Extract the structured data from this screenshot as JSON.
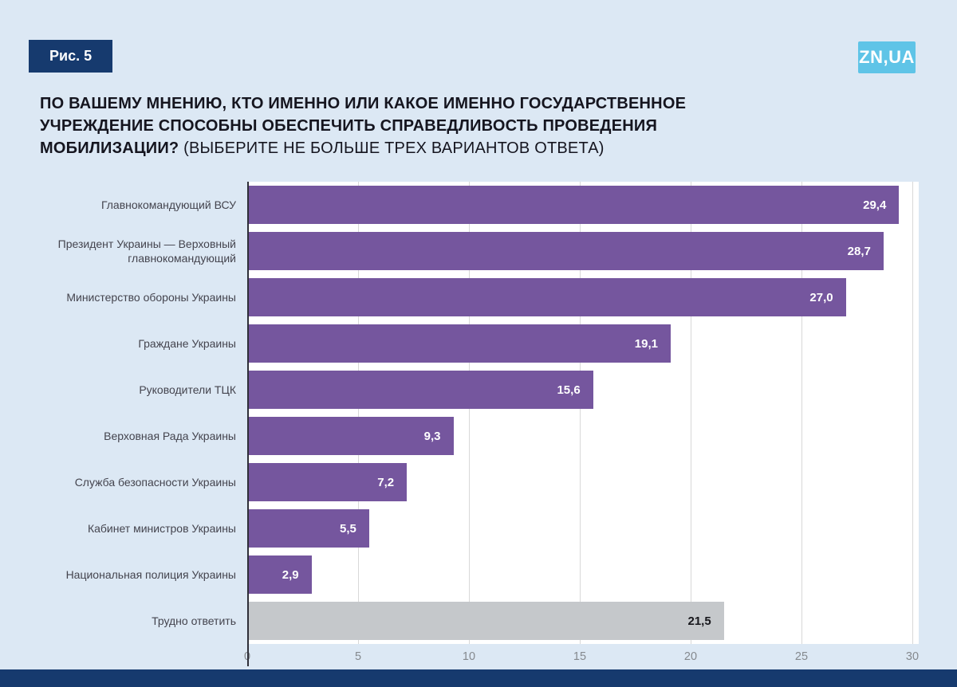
{
  "figure_badge": "Рис. 5",
  "logo": "ZN,UA",
  "title": {
    "line1": "ПО ВАШЕМУ МНЕНИЮ, КТО ИМЕННО ИЛИ КАКОЕ ИМЕННО ГОСУДАРСТВЕННОЕ",
    "line2": "УЧРЕЖДЕНИЕ СПОСОБНЫ ОБЕСПЕЧИТЬ СПРАВЕДЛИВОСТЬ ПРОВЕДЕНИЯ",
    "line3_bold": "МОБИЛИЗАЦИИ?",
    "line3_normal": " (ВЫБЕРИТЕ НЕ БОЛЬШЕ ТРЕХ ВАРИАНТОВ ОТВЕТА)"
  },
  "colors": {
    "background": "#dce8f4",
    "navy": "#163a6e",
    "logo_cyan": "#5fc4e7",
    "bar_purple": "#75569e",
    "bar_gray": "#c5c8cb",
    "plot_background": "#ffffff",
    "gridline": "#d8d8d8",
    "axis_line": "#2f2f38"
  },
  "chart_data": {
    "type": "bar",
    "orientation": "horizontal",
    "title": "ПО ВАШЕМУ МНЕНИЮ, КТО ИМЕННО ИЛИ КАКОЕ ИМЕННО ГОСУДАРСТВЕННОЕ УЧРЕЖДЕНИЕ СПОСОБНЫ ОБЕСПЕЧИТЬ СПРАВЕДЛИВОСТЬ ПРОВЕДЕНИЯ МОБИЛИЗАЦИИ? (ВЫБЕРИТЕ НЕ БОЛЬШЕ ТРЕХ ВАРИАНТОВ ОТВЕТА)",
    "categories": [
      "Главнокомандующий ВСУ",
      "Президент Украины — Верховный главнокомандующий",
      "Министерство обороны Украины",
      "Граждане Украины",
      "Руководители ТЦК",
      "Верховная Рада Украины",
      "Служба безопасности Украины",
      "Кабинет министров Украины",
      "Национальная полиция Украины",
      "Трудно ответить"
    ],
    "values": [
      29.4,
      28.7,
      27.0,
      19.1,
      15.6,
      9.3,
      7.2,
      5.5,
      2.9,
      21.5
    ],
    "display_values": [
      "29,4",
      "28,7",
      "27,0",
      "19,1",
      "15,6",
      "9,3",
      "7,2",
      "5,5",
      "2,9",
      "21,5"
    ],
    "bar_colors": [
      "#75569e",
      "#75569e",
      "#75569e",
      "#75569e",
      "#75569e",
      "#75569e",
      "#75569e",
      "#75569e",
      "#75569e",
      "#c5c8cb"
    ],
    "value_label_colors": [
      "#ffffff",
      "#ffffff",
      "#ffffff",
      "#ffffff",
      "#ffffff",
      "#ffffff",
      "#ffffff",
      "#ffffff",
      "#ffffff",
      "#17171c"
    ],
    "x_ticks": [
      0,
      5,
      10,
      15,
      20,
      25,
      30
    ],
    "xlim": [
      0,
      30
    ],
    "grid": "vertical",
    "legend": "none"
  }
}
